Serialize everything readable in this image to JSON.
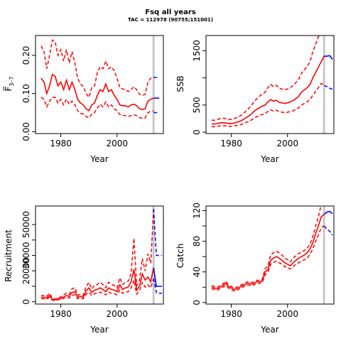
{
  "figure": {
    "title": "Fsq all years",
    "subtitle": "TAC = 112978 (90755;151001)"
  },
  "colors": {
    "history": "#ff0000",
    "forecast": "#0000ff",
    "divider": "#c8c8c8",
    "axis": "#000000"
  },
  "chart_data": [
    {
      "id": "fbar",
      "type": "line",
      "xlabel": "Year",
      "ylabel": "F̅ 3–7",
      "ylabel_main": "F̅",
      "ylabel_sub": "3–7",
      "xlim": [
        1971,
        2016.5
      ],
      "ylim": [
        -0.005,
        0.252
      ],
      "xticks": [
        1980,
        2000
      ],
      "yticks": [
        0.0,
        0.1,
        0.2
      ],
      "ytick_labels": [
        "0.00",
        "0.10",
        "0.20"
      ],
      "divider_year": 2013,
      "history": {
        "x": [
          1973,
          1974,
          1975,
          1976,
          1977,
          1978,
          1979,
          1980,
          1981,
          1982,
          1983,
          1984,
          1985,
          1986,
          1987,
          1988,
          1989,
          1990,
          1991,
          1992,
          1993,
          1994,
          1995,
          1996,
          1997,
          1998,
          1999,
          2000,
          2001,
          2002,
          2003,
          2004,
          2005,
          2006,
          2007,
          2008,
          2009,
          2010,
          2011,
          2012,
          2013
        ],
        "mid": [
          0.14,
          0.13,
          0.1,
          0.12,
          0.15,
          0.145,
          0.12,
          0.13,
          0.11,
          0.135,
          0.11,
          0.13,
          0.11,
          0.085,
          0.075,
          0.07,
          0.06,
          0.055,
          0.07,
          0.075,
          0.095,
          0.11,
          0.105,
          0.125,
          0.105,
          0.11,
          0.095,
          0.085,
          0.07,
          0.068,
          0.068,
          0.065,
          0.07,
          0.072,
          0.068,
          0.06,
          0.058,
          0.06,
          0.08,
          0.085,
          0.088
        ],
        "low": [
          0.09,
          0.085,
          0.065,
          0.08,
          0.09,
          0.09,
          0.075,
          0.085,
          0.07,
          0.085,
          0.072,
          0.08,
          0.07,
          0.055,
          0.048,
          0.046,
          0.04,
          0.036,
          0.046,
          0.05,
          0.062,
          0.072,
          0.065,
          0.078,
          0.065,
          0.07,
          0.06,
          0.055,
          0.045,
          0.043,
          0.042,
          0.04,
          0.042,
          0.044,
          0.042,
          0.037,
          0.035,
          0.036,
          0.05,
          0.053,
          0.055
        ],
        "high": [
          0.225,
          0.21,
          0.165,
          0.2,
          0.24,
          0.235,
          0.2,
          0.215,
          0.185,
          0.215,
          0.18,
          0.21,
          0.18,
          0.14,
          0.125,
          0.118,
          0.1,
          0.09,
          0.115,
          0.12,
          0.155,
          0.17,
          0.165,
          0.185,
          0.165,
          0.17,
          0.16,
          0.14,
          0.115,
          0.112,
          0.11,
          0.105,
          0.11,
          0.118,
          0.11,
          0.098,
          0.095,
          0.098,
          0.13,
          0.14,
          0.142
        ]
      },
      "forecast": {
        "x": [
          2013,
          2015
        ],
        "mid": [
          0.088,
          0.088
        ],
        "low": [
          0.05,
          0.05
        ],
        "high": [
          0.142,
          0.142
        ]
      }
    },
    {
      "id": "ssb",
      "type": "line",
      "xlabel": "Year",
      "ylabel": "SSB",
      "xlim": [
        1971,
        2016.5
      ],
      "ylim": [
        -25,
        1780
      ],
      "xticks": [
        1980,
        2000
      ],
      "yticks": [
        0,
        500,
        1500
      ],
      "ytick_labels": [
        "0",
        "500",
        "1500"
      ],
      "minor_yticks": [
        1000
      ],
      "divider_year": 2013,
      "history": {
        "x": [
          1973,
          1974,
          1975,
          1976,
          1977,
          1978,
          1979,
          1980,
          1981,
          1982,
          1983,
          1984,
          1985,
          1986,
          1987,
          1988,
          1989,
          1990,
          1991,
          1992,
          1993,
          1994,
          1995,
          1996,
          1997,
          1998,
          1999,
          2000,
          2001,
          2002,
          2003,
          2004,
          2005,
          2006,
          2007,
          2008,
          2009,
          2010,
          2011,
          2012,
          2013
        ],
        "mid": [
          150,
          150,
          160,
          170,
          175,
          170,
          160,
          160,
          170,
          185,
          200,
          225,
          260,
          290,
          330,
          380,
          420,
          450,
          480,
          500,
          560,
          600,
          570,
          590,
          550,
          540,
          530,
          540,
          560,
          580,
          620,
          660,
          740,
          780,
          820,
          880,
          1000,
          1100,
          1200,
          1300,
          1400
        ],
        "low": [
          100,
          100,
          110,
          115,
          118,
          115,
          110,
          110,
          115,
          125,
          135,
          150,
          175,
          195,
          220,
          255,
          285,
          305,
          325,
          340,
          380,
          410,
          390,
          405,
          375,
          370,
          360,
          368,
          380,
          395,
          420,
          450,
          500,
          530,
          560,
          600,
          680,
          750,
          820,
          900,
          860
        ],
        "high": [
          220,
          220,
          235,
          250,
          258,
          250,
          235,
          235,
          250,
          272,
          295,
          330,
          380,
          425,
          485,
          555,
          615,
          660,
          705,
          735,
          820,
          880,
          840,
          865,
          810,
          795,
          780,
          795,
          825,
          855,
          915,
          975,
          1090,
          1150,
          1210,
          1300,
          1480,
          1620,
          1760,
          1800,
          1800
        ]
      },
      "forecast": {
        "x": [
          2013,
          2014,
          2015,
          2016
        ],
        "mid": [
          1400,
          1400,
          1410,
          1340
        ],
        "low": [
          860,
          840,
          810,
          790
        ],
        "high": [
          1800,
          1850,
          1820,
          1760
        ]
      }
    },
    {
      "id": "recruitment",
      "type": "line",
      "xlabel": "Year",
      "ylabel": "Recruitment",
      "xlim": [
        1971,
        2016.5
      ],
      "ylim": [
        -1500,
        62000
      ],
      "xticks": [
        1980,
        2000
      ],
      "yticks": [
        0,
        20000,
        30000,
        50000
      ],
      "ytick_labels": [
        "0",
        "20000",
        "30000",
        "50000"
      ],
      "minor_yticks": [
        10000,
        40000
      ],
      "divider_year": 2013,
      "history": {
        "x": [
          1973,
          1974,
          1975,
          1976,
          1977,
          1978,
          1979,
          1980,
          1981,
          1982,
          1983,
          1984,
          1985,
          1986,
          1987,
          1988,
          1989,
          1990,
          1991,
          1992,
          1993,
          1994,
          1995,
          1996,
          1997,
          1998,
          1999,
          2000,
          2001,
          2002,
          2003,
          2004,
          2005,
          2006,
          2007,
          2008,
          2009,
          2010,
          2011,
          2012,
          2013
        ],
        "mid": [
          3000,
          2800,
          2500,
          4000,
          1500,
          1200,
          1800,
          2200,
          3200,
          4000,
          3500,
          6000,
          6500,
          3000,
          3500,
          3000,
          7000,
          9000,
          6000,
          7500,
          8000,
          9000,
          8000,
          6500,
          9000,
          8000,
          7500,
          6500,
          11000,
          8000,
          9000,
          9500,
          13000,
          21000,
          7500,
          10000,
          18000,
          14000,
          16000,
          13000,
          22000
        ],
        "low": [
          2000,
          1900,
          1700,
          2800,
          1000,
          800,
          1200,
          1500,
          2200,
          2800,
          2400,
          4200,
          4500,
          2000,
          2400,
          2000,
          4800,
          6200,
          4100,
          5200,
          5500,
          6200,
          5500,
          4500,
          6200,
          5500,
          5200,
          4500,
          7600,
          5500,
          6200,
          6500,
          9000,
          14000,
          5000,
          7000,
          12500,
          9500,
          11000,
          9000,
          15000
        ],
        "high": [
          4200,
          3900,
          3500,
          5600,
          2100,
          1700,
          2500,
          3100,
          4500,
          5600,
          4900,
          8400,
          9100,
          4200,
          4900,
          4200,
          9800,
          12600,
          8400,
          10500,
          11200,
          12600,
          11200,
          9100,
          12600,
          11200,
          10500,
          9100,
          15400,
          11200,
          12600,
          13300,
          18200,
          41000,
          10500,
          14000,
          28000,
          20000,
          31000,
          25000,
          60000
        ]
      },
      "forecast": {
        "x": [
          2013,
          2014,
          2015,
          2016
        ],
        "mid": [
          22000,
          10000,
          10000,
          10000
        ],
        "low": [
          15000,
          6000,
          5500,
          5500
        ],
        "high": [
          60000,
          30000,
          30000,
          30000
        ]
      }
    },
    {
      "id": "catch",
      "type": "line",
      "xlabel": "Year",
      "ylabel": "Catch",
      "xlim": [
        1971,
        2016.5
      ],
      "ylim": [
        -2,
        126
      ],
      "xticks": [
        1980,
        2000
      ],
      "yticks": [
        0,
        40,
        80,
        120
      ],
      "ytick_labels": [
        "0",
        "40",
        "80",
        "120"
      ],
      "minor_yticks": [
        20,
        60,
        100
      ],
      "divider_year": 2013,
      "history": {
        "x": [
          1973,
          1974,
          1975,
          1976,
          1977,
          1978,
          1979,
          1980,
          1981,
          1982,
          1983,
          1984,
          1985,
          1986,
          1987,
          1988,
          1989,
          1990,
          1991,
          1992,
          1993,
          1994,
          1995,
          1996,
          1997,
          1998,
          1999,
          2000,
          2001,
          2002,
          2003,
          2004,
          2005,
          2006,
          2007,
          2008,
          2009,
          2010,
          2011,
          2012,
          2013
        ],
        "mid": [
          20,
          19,
          18,
          20,
          22,
          25,
          21,
          19,
          17,
          18,
          20,
          22,
          24,
          25,
          24,
          25,
          27,
          27,
          28,
          40,
          43,
          55,
          58,
          60,
          58,
          55,
          52,
          50,
          48,
          52,
          55,
          58,
          60,
          62,
          65,
          70,
          78,
          90,
          100,
          112,
          115
        ],
        "low": [
          18,
          17,
          16,
          18,
          20,
          22,
          19,
          17,
          15,
          16,
          18,
          20,
          22,
          23,
          22,
          23,
          25,
          25,
          26,
          36,
          39,
          50,
          52,
          54,
          52,
          50,
          47,
          45,
          44,
          47,
          50,
          52,
          54,
          56,
          58,
          63,
          70,
          80,
          88,
          98,
          100
        ],
        "high": [
          22,
          21,
          20,
          22,
          24,
          28,
          23,
          21,
          19,
          20,
          22,
          24,
          26,
          27,
          26,
          27,
          29,
          29,
          30,
          44,
          48,
          62,
          65,
          67,
          65,
          62,
          58,
          56,
          53,
          58,
          61,
          64,
          66,
          68,
          71,
          76,
          86,
          100,
          112,
          128,
          130
        ]
      },
      "forecast": {
        "x": [
          2013,
          2014,
          2015,
          2016
        ],
        "mid": [
          115,
          118,
          119,
          116
        ],
        "low": [
          100,
          96,
          93,
          88
        ],
        "high": [
          130,
          132,
          132,
          130
        ]
      }
    }
  ]
}
